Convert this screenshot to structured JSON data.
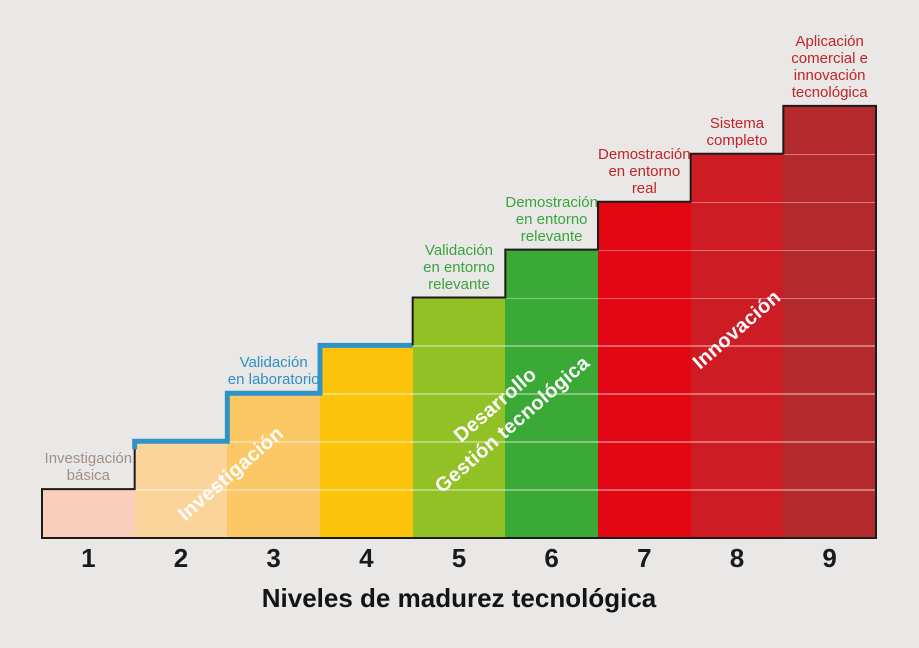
{
  "background": "#e9e8e6",
  "title": "Niveles de madurez tecnológica",
  "chart_data": {
    "type": "bar",
    "title": "Niveles de madurez tecnológica",
    "xlabel": "Niveles de madurez tecnológica",
    "ylabel": "",
    "categories": [
      "1",
      "2",
      "3",
      "4",
      "5",
      "6",
      "7",
      "8",
      "9"
    ],
    "values": [
      1,
      2,
      3,
      4,
      5,
      6,
      7,
      8,
      9
    ],
    "grid": true,
    "legend_position": "none",
    "outline_color": "#1c1b1a",
    "bars": [
      {
        "level": "1",
        "value": 1,
        "color": "#f9cfbc",
        "label": "Investigación\nbásica",
        "label_color": "#a28f85"
      },
      {
        "level": "2",
        "value": 2,
        "color": "#fbd49b",
        "label": "",
        "label_color": ""
      },
      {
        "level": "3",
        "value": 3,
        "color": "#fcc765",
        "label": "Validación\nen laboratorio",
        "label_color": "#2e8fc4"
      },
      {
        "level": "4",
        "value": 4,
        "color": "#fdc30b",
        "label": "",
        "label_color": ""
      },
      {
        "level": "5",
        "value": 5,
        "color": "#92c126",
        "label": "Validación\nen entorno\nrelevante",
        "label_color": "#3aa43c"
      },
      {
        "level": "6",
        "value": 6,
        "color": "#3aa935",
        "label": "Demostración\nen entorno\nrelevante",
        "label_color": "#3aa43c"
      },
      {
        "level": "7",
        "value": 7,
        "color": "#e30613",
        "label": "Demostración\nen entorno\nreal",
        "label_color": "#c0232b"
      },
      {
        "level": "8",
        "value": 8,
        "color": "#cd1c23",
        "label": "Sistema\ncompleto",
        "label_color": "#c0232b"
      },
      {
        "level": "9",
        "value": 9,
        "color": "#b42a2d",
        "label": "Aplicación\ncomercial e\ninnovación\ntecnológica",
        "label_color": "#c0232b"
      }
    ],
    "phases": [
      {
        "text": "Investigación",
        "bars": [
          2,
          3
        ],
        "color": "#ffffff"
      },
      {
        "text": "Desarrollo\nGestión tecnológica",
        "bars": [
          5,
          6
        ],
        "color": "#ffffff"
      },
      {
        "text": "Innovación",
        "bars": [
          7,
          8
        ],
        "color": "#ffffff"
      }
    ],
    "blue_step_line": {
      "color": "#2e93c6",
      "levels": [
        2,
        3,
        4
      ]
    }
  }
}
